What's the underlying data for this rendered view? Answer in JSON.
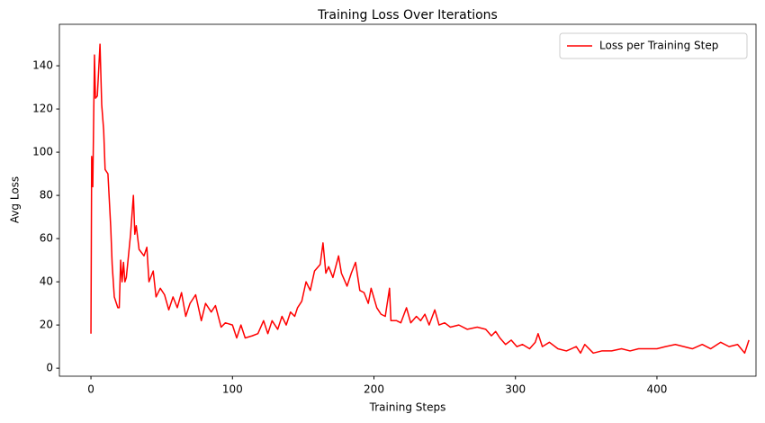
{
  "chart_data": {
    "type": "line",
    "title": "Training Loss Over Iterations",
    "x_label": "Training Steps",
    "y_label": "Avg Loss",
    "x": [
      0,
      0.5,
      1.3,
      2.5,
      3.2,
      4.5,
      6.4,
      7.6,
      9,
      10,
      12,
      14,
      15,
      16.5,
      18,
      19,
      20,
      21,
      22,
      23,
      24,
      25,
      28,
      30,
      31,
      32,
      34,
      37.5,
      39.5,
      41,
      44,
      46,
      49,
      52,
      55,
      58,
      61,
      64,
      67,
      70,
      74,
      78,
      81,
      85,
      88,
      92,
      95,
      100,
      103,
      106,
      109,
      114,
      118,
      122,
      125,
      128,
      132,
      135,
      138,
      141,
      144,
      146,
      149,
      152,
      155,
      158,
      162,
      164,
      166,
      168,
      171,
      175,
      177,
      181,
      184,
      187,
      190,
      193,
      196,
      198,
      202,
      205,
      208,
      211,
      212,
      216,
      219,
      223,
      226,
      230,
      233,
      236,
      239,
      243,
      246,
      250,
      254,
      260,
      266,
      273,
      279,
      283,
      286,
      289,
      293,
      297,
      301,
      305,
      310,
      314,
      316,
      319,
      324,
      330,
      336,
      343,
      346,
      349,
      355,
      361,
      368,
      375,
      381,
      387,
      394,
      400,
      406,
      413,
      419,
      425,
      432,
      438,
      445,
      451,
      457,
      462,
      465
    ],
    "series": [
      {
        "name": "Loss per Training Step",
        "color": "#ff0000",
        "values": [
          16,
          98,
          84,
          145,
          125,
          126,
          150,
          122,
          110,
          92,
          90,
          65,
          48,
          33,
          30,
          28,
          28,
          50,
          40,
          49,
          40,
          42,
          62,
          80,
          62,
          66,
          55,
          52,
          56,
          40,
          45,
          33,
          37,
          34,
          27,
          33,
          28,
          35,
          24,
          30,
          34,
          22,
          30,
          26,
          29,
          19,
          21,
          20,
          14,
          20,
          14,
          15,
          16,
          22,
          16,
          22,
          18,
          24,
          20,
          26,
          24,
          28,
          31,
          40,
          36,
          45,
          48,
          58,
          44,
          47,
          42,
          52,
          44,
          38,
          44,
          49,
          36,
          35,
          30,
          37,
          28,
          25,
          24,
          37,
          22,
          22,
          21,
          28,
          21,
          24,
          22,
          25,
          20,
          27,
          20,
          21,
          19,
          20,
          18,
          19,
          18,
          15,
          17,
          14,
          11,
          13,
          10,
          11,
          9,
          12,
          16,
          10,
          12,
          9,
          8,
          10,
          7,
          11,
          7,
          8,
          8,
          9,
          8,
          9,
          9,
          9,
          10,
          11,
          10,
          9,
          11,
          9,
          12,
          10,
          11,
          7,
          13
        ]
      }
    ],
    "xlim": [
      -22.3,
      470
    ],
    "ylim": [
      -3.7,
      159.2
    ],
    "xticks": [
      0,
      100,
      200,
      300,
      400
    ],
    "yticks": [
      0,
      20,
      40,
      60,
      80,
      100,
      120,
      140
    ],
    "legend": "upper right"
  }
}
